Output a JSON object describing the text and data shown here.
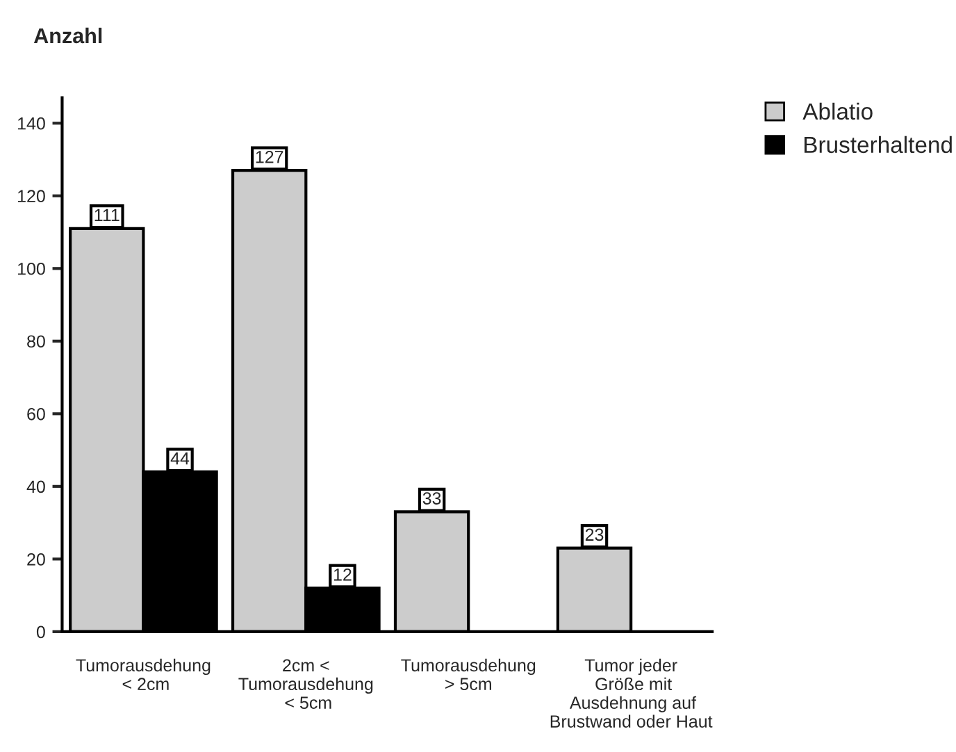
{
  "chart_data": {
    "type": "bar",
    "ylabel": "Anzahl",
    "categories": [
      "Tumorausdehung\n < 2cm",
      "2cm <\nTumorausdehung\n < 5cm",
      "Tumorausdehung\n> 5cm",
      "Tumor jeder\n Größe mit\n Ausdehnung auf\nBrustwand oder Haut"
    ],
    "series": [
      {
        "name": "Ablatio",
        "color": "#cccccc",
        "values": [
          111,
          127,
          33,
          23
        ]
      },
      {
        "name": "Brusterhaltend",
        "color": "#000000",
        "values": [
          44,
          12,
          null,
          null
        ]
      }
    ],
    "ylim": [
      0,
      147
    ],
    "yticks": [
      0,
      20,
      40,
      60,
      80,
      100,
      120,
      140
    ],
    "data_labels": true,
    "legend": "top right",
    "grid": false
  }
}
